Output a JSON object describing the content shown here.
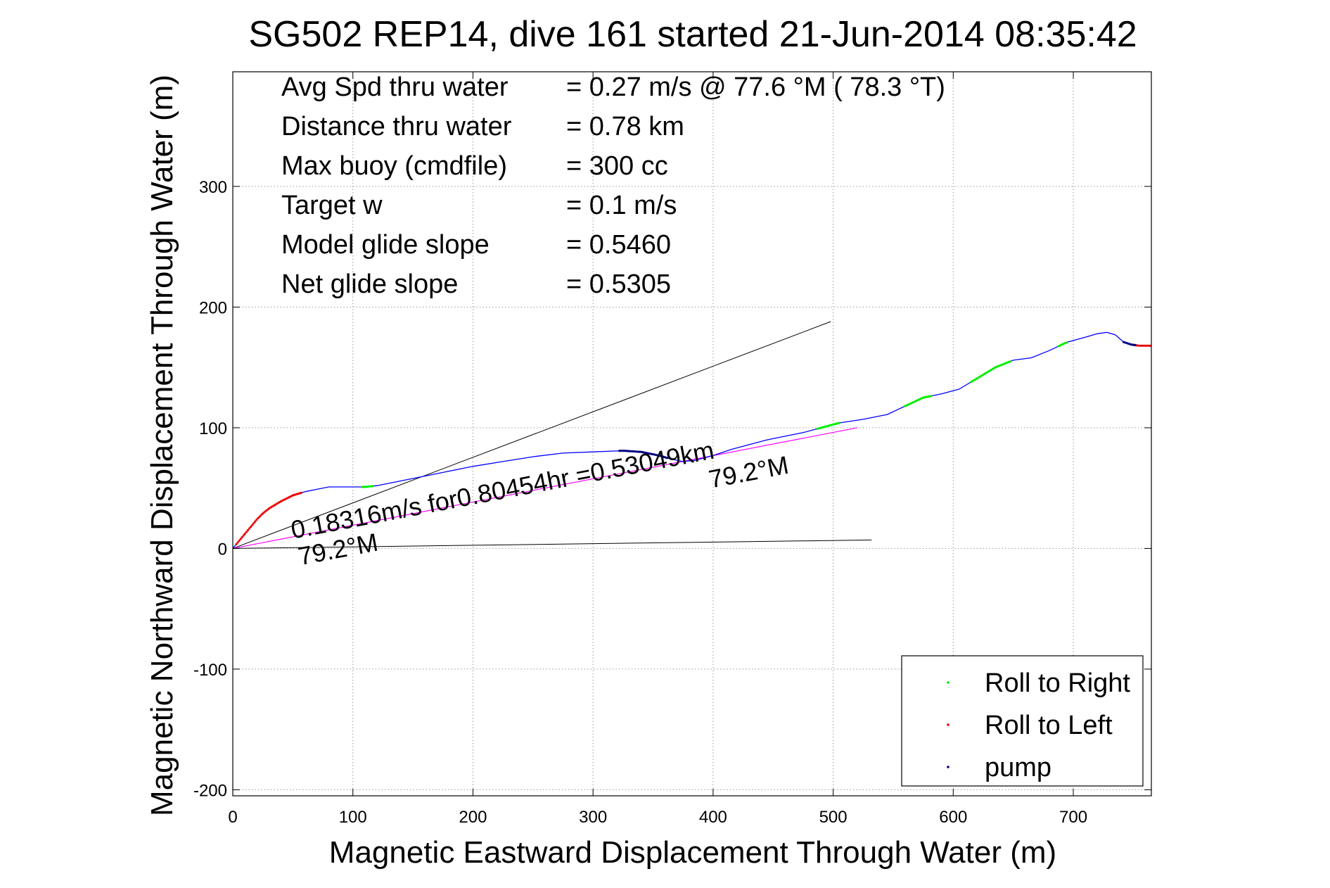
{
  "chart_data": {
    "type": "scatter",
    "title": "SG502 REP14, dive 161 started 21-Jun-2014 08:35:42",
    "xlabel": "Magnetic Eastward Displacement Through Water (m)",
    "ylabel": "Magnetic Northward Displacement Through Water (m)",
    "xlim": [
      0,
      765
    ],
    "ylim": [
      -205,
      395
    ],
    "xticks": [
      0,
      100,
      200,
      300,
      400,
      500,
      600,
      700
    ],
    "yticks": [
      -200,
      -100,
      0,
      100,
      200,
      300
    ],
    "grid": true,
    "legend_position": "bottom-right",
    "colors": {
      "track": "#0000ff",
      "roll_right": "#00ee00",
      "roll_left": "#ee0000",
      "pump": "#000080",
      "fit": "#ff00ff",
      "ref": "#000000"
    },
    "info": [
      {
        "label": "Avg Spd thru water",
        "value": "=  0.27 m/s @  77.6 °M ( 78.3 °T)"
      },
      {
        "label": "Distance thru water",
        "value": "=  0.78 km"
      },
      {
        "label": "Max buoy (cmdfile)",
        "value": "= 300 cc"
      },
      {
        "label": "Target w",
        "value": "= 0.1 m/s"
      },
      {
        "label": "Model glide slope",
        "value": "= 0.5460"
      },
      {
        "label": "Net glide slope",
        "value": "= 0.5305"
      }
    ],
    "annotations": [
      {
        "text": "0.18316m/s for0.80454hr =0.53049km",
        "x": 50,
        "y": 8,
        "angle_deg": -10.8
      },
      {
        "text": "79.2°M",
        "x": 56,
        "y": -14,
        "angle_deg": -10.8
      },
      {
        "text": "79.2°M",
        "x": 398,
        "y": 50,
        "angle_deg": -10.8
      }
    ],
    "series": [
      {
        "name": "track",
        "x": [
          0,
          5,
          10,
          15,
          20,
          25,
          30,
          40,
          50,
          60,
          70,
          80,
          90,
          100,
          110,
          120,
          135,
          150,
          175,
          200,
          225,
          250,
          275,
          300,
          325,
          340,
          355,
          365,
          375,
          385,
          400,
          415,
          430,
          445,
          460,
          475,
          490,
          505,
          525,
          545,
          560,
          575,
          590,
          605,
          620,
          635,
          650,
          665,
          680,
          695,
          710,
          720,
          728,
          735,
          742,
          748,
          755,
          765
        ],
        "y": [
          0,
          6,
          12,
          18,
          24,
          29,
          33,
          39,
          44,
          47,
          49,
          51,
          51,
          51,
          51,
          52,
          55,
          58,
          63,
          68,
          72,
          76,
          79,
          80,
          81,
          80,
          77,
          74,
          72,
          73,
          77,
          82,
          86,
          90,
          93,
          96,
          100,
          104,
          107,
          111,
          118,
          125,
          128,
          132,
          141,
          150,
          156,
          158,
          164,
          171,
          175,
          178,
          179,
          177,
          171,
          169,
          168,
          168
        ]
      },
      {
        "name": "Roll to Right",
        "ranges": [
          [
            108,
            117
          ],
          [
            487,
            505
          ],
          [
            560,
            582
          ],
          [
            615,
            648
          ],
          [
            688,
            695
          ]
        ]
      },
      {
        "name": "Roll to Left",
        "ranges": [
          [
            3,
            58
          ],
          [
            750,
            765
          ]
        ]
      },
      {
        "name": "pump",
        "ranges": [
          [
            322,
            362
          ],
          [
            742,
            752
          ]
        ]
      },
      {
        "name": "net",
        "x": [
          0,
          520
        ],
        "y": [
          0,
          100
        ]
      },
      {
        "name": "model",
        "x": [
          0,
          498
        ],
        "y": [
          0,
          188
        ]
      },
      {
        "name": "heading",
        "x": [
          0,
          532
        ],
        "y": [
          0,
          7
        ]
      }
    ],
    "legend": [
      {
        "label": "Roll to Right",
        "series": "roll_right"
      },
      {
        "label": "Roll to Left",
        "series": "roll_left"
      },
      {
        "label": "pump",
        "series": "pump"
      }
    ]
  }
}
